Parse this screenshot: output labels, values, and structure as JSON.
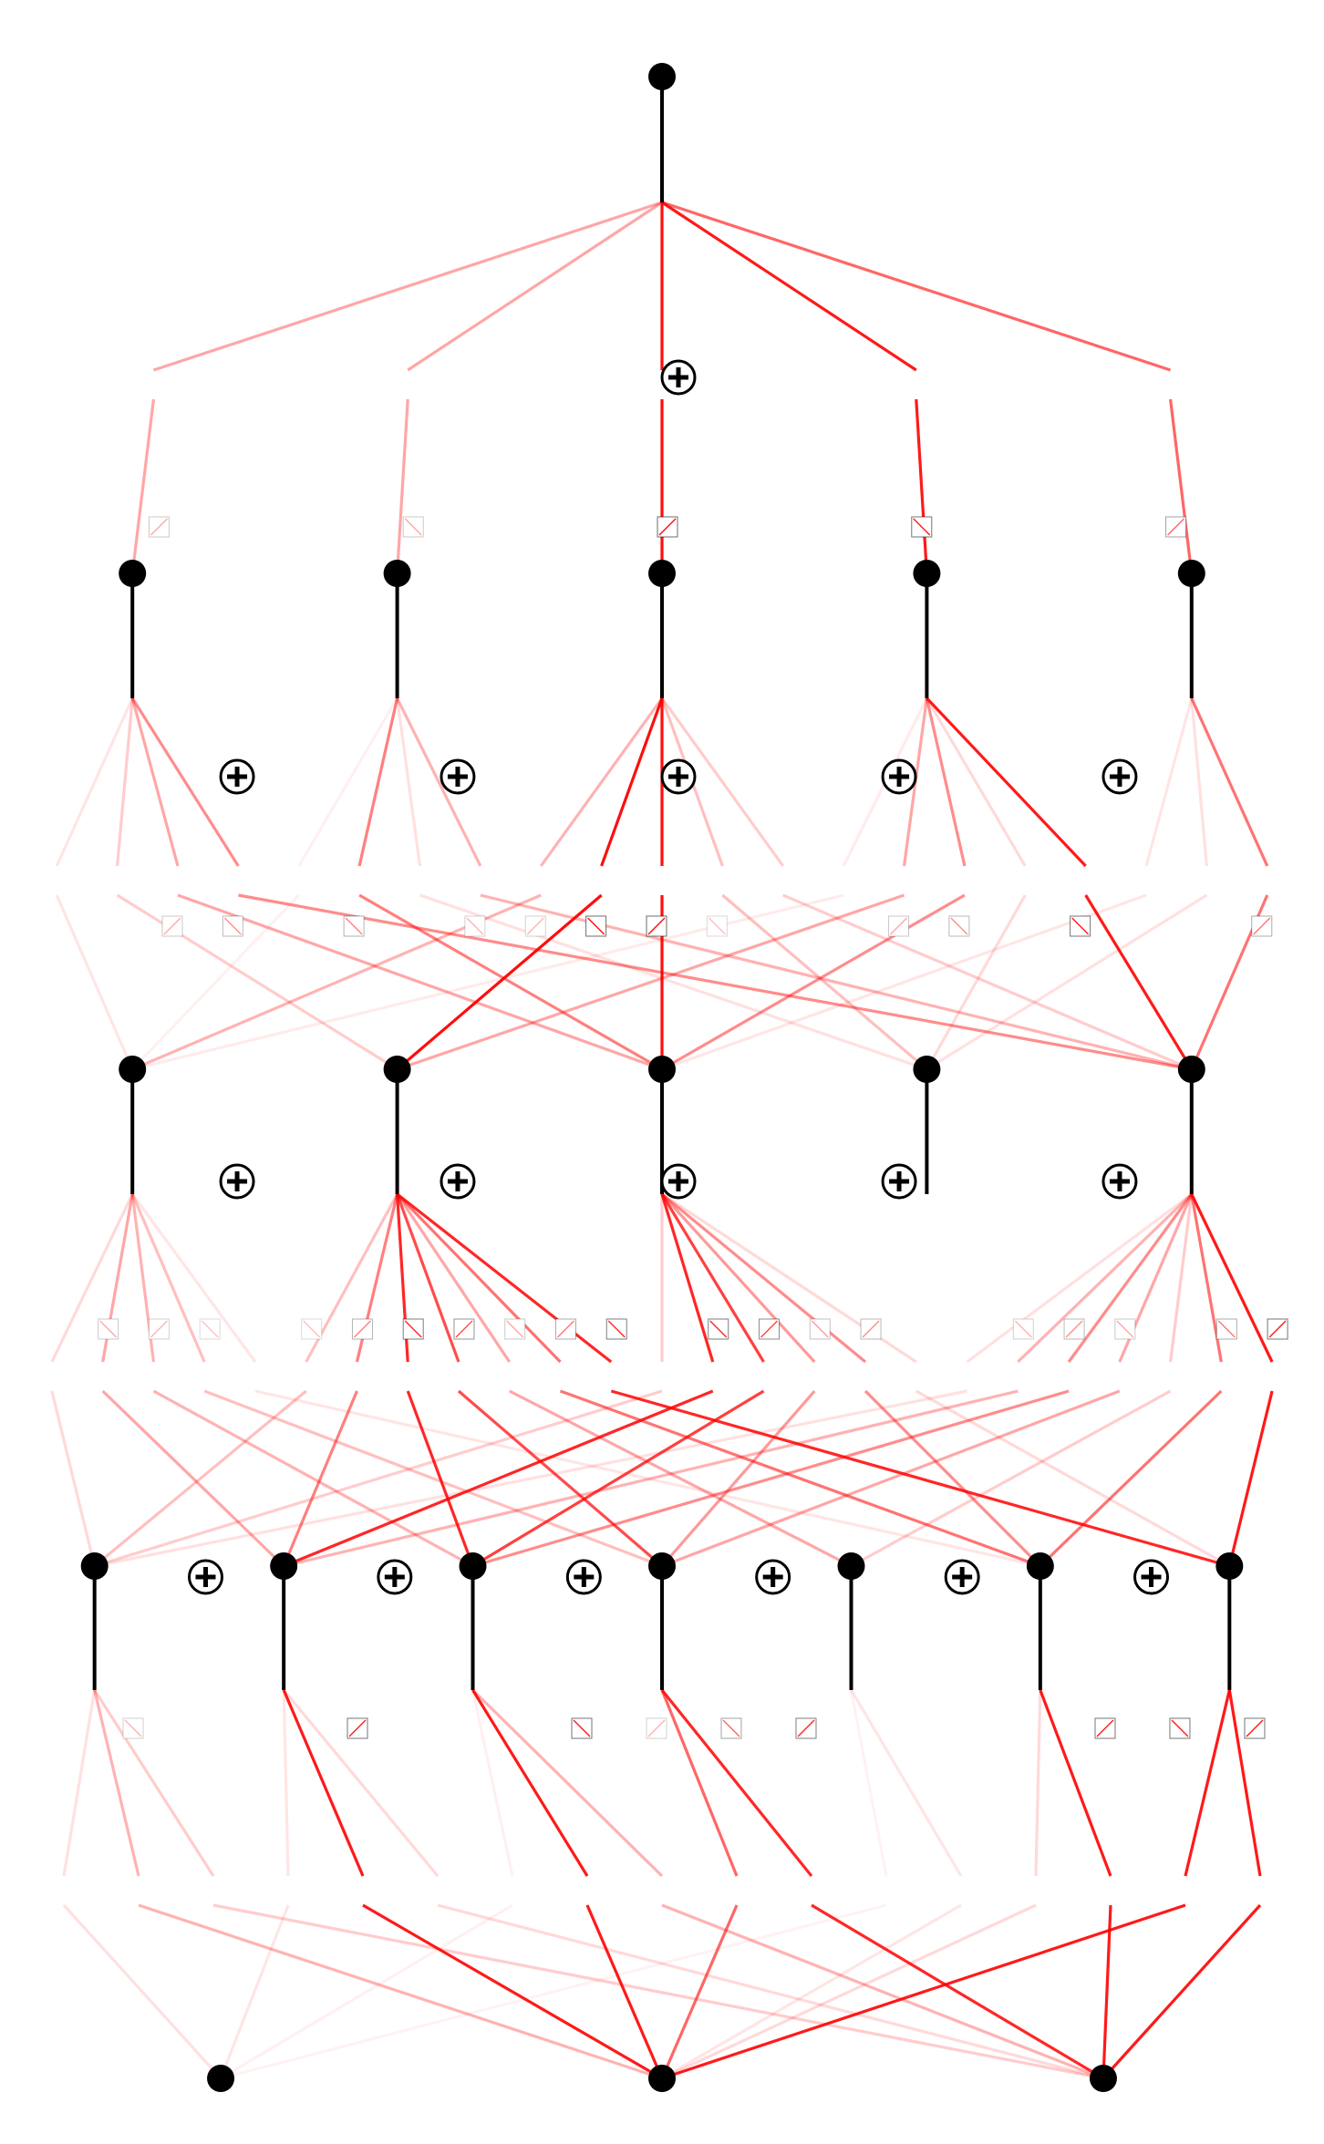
{
  "colors": {
    "node": "#000000",
    "edge_strong": "#ff0000",
    "stem": "#000000"
  },
  "layers": [
    {
      "name": "layer-0",
      "nodes": [
        0.5
      ]
    },
    {
      "name": "layer-1",
      "nodes": [
        0.1,
        0.3,
        0.5,
        0.7,
        0.9
      ]
    },
    {
      "name": "layer-2",
      "nodes": [
        0.1,
        0.3,
        0.5,
        0.7,
        0.9
      ]
    },
    {
      "name": "layer-3",
      "nodes": [
        0.0714,
        0.2143,
        0.3571,
        0.5,
        0.6429,
        0.7857,
        0.9286
      ]
    },
    {
      "name": "layer-4",
      "nodes": [
        0.1667,
        0.5,
        0.8333
      ]
    }
  ],
  "sum_symbols": [
    {
      "between": [
        0,
        1
      ],
      "positions": [
        0.5
      ]
    },
    {
      "between": [
        1,
        2
      ],
      "positions": [
        0.1667,
        0.3333,
        0.5,
        0.6667,
        0.8333
      ]
    },
    {
      "between": [
        2,
        3
      ],
      "positions": [
        0.1667,
        0.3333,
        0.5,
        0.6667,
        0.8333
      ]
    },
    {
      "between": [
        3,
        4
      ],
      "positions": [
        0.1429,
        0.2857,
        0.4286,
        0.5714,
        0.7143,
        0.8571
      ]
    }
  ],
  "edge_groups": [
    {
      "from_layer": 0,
      "to_layer": 1,
      "edges": [
        {
          "src": 0,
          "dst": 0,
          "w": 0.35
        },
        {
          "src": 0,
          "dst": 1,
          "w": 0.35
        },
        {
          "src": 0,
          "dst": 2,
          "w": 0.95
        },
        {
          "src": 0,
          "dst": 3,
          "w": 0.9
        },
        {
          "src": 0,
          "dst": 4,
          "w": 0.6
        }
      ]
    },
    {
      "from_layer": 1,
      "to_layer": 2,
      "edges": [
        {
          "src": 0,
          "dst": 0,
          "w": 0.1
        },
        {
          "src": 0,
          "dst": 1,
          "w": 0.2
        },
        {
          "src": 0,
          "dst": 2,
          "w": 0.35
        },
        {
          "src": 0,
          "dst": 4,
          "w": 0.45
        },
        {
          "src": 1,
          "dst": 0,
          "w": 0.06
        },
        {
          "src": 1,
          "dst": 2,
          "w": 0.5
        },
        {
          "src": 1,
          "dst": 3,
          "w": 0.12
        },
        {
          "src": 1,
          "dst": 4,
          "w": 0.3
        },
        {
          "src": 2,
          "dst": 0,
          "w": 0.3
        },
        {
          "src": 2,
          "dst": 1,
          "w": 0.95
        },
        {
          "src": 2,
          "dst": 2,
          "w": 0.95
        },
        {
          "src": 2,
          "dst": 3,
          "w": 0.25
        },
        {
          "src": 2,
          "dst": 4,
          "w": 0.2
        },
        {
          "src": 3,
          "dst": 0,
          "w": 0.08
        },
        {
          "src": 3,
          "dst": 1,
          "w": 0.35
        },
        {
          "src": 3,
          "dst": 2,
          "w": 0.45
        },
        {
          "src": 3,
          "dst": 3,
          "w": 0.15
        },
        {
          "src": 3,
          "dst": 4,
          "w": 0.9
        },
        {
          "src": 4,
          "dst": 2,
          "w": 0.1
        },
        {
          "src": 4,
          "dst": 3,
          "w": 0.12
        },
        {
          "src": 4,
          "dst": 4,
          "w": 0.55
        }
      ]
    },
    {
      "from_layer": 2,
      "to_layer": 3,
      "edges": [
        {
          "src": 0,
          "dst": 0,
          "w": 0.15
        },
        {
          "src": 0,
          "dst": 1,
          "w": 0.35
        },
        {
          "src": 0,
          "dst": 2,
          "w": 0.3
        },
        {
          "src": 0,
          "dst": 3,
          "w": 0.25
        },
        {
          "src": 0,
          "dst": 5,
          "w": 0.1
        },
        {
          "src": 1,
          "dst": 0,
          "w": 0.25
        },
        {
          "src": 1,
          "dst": 1,
          "w": 0.5
        },
        {
          "src": 1,
          "dst": 2,
          "w": 0.85
        },
        {
          "src": 1,
          "dst": 3,
          "w": 0.7
        },
        {
          "src": 1,
          "dst": 4,
          "w": 0.35
        },
        {
          "src": 1,
          "dst": 5,
          "w": 0.55
        },
        {
          "src": 1,
          "dst": 6,
          "w": 0.85
        },
        {
          "src": 2,
          "dst": 0,
          "w": 0.2
        },
        {
          "src": 2,
          "dst": 1,
          "w": 0.85
        },
        {
          "src": 2,
          "dst": 2,
          "w": 0.75
        },
        {
          "src": 2,
          "dst": 3,
          "w": 0.4
        },
        {
          "src": 2,
          "dst": 5,
          "w": 0.45
        },
        {
          "src": 2,
          "dst": 6,
          "w": 0.15
        },
        {
          "src": 4,
          "dst": 0,
          "w": 0.12
        },
        {
          "src": 4,
          "dst": 1,
          "w": 0.3
        },
        {
          "src": 4,
          "dst": 2,
          "w": 0.45
        },
        {
          "src": 4,
          "dst": 3,
          "w": 0.35
        },
        {
          "src": 4,
          "dst": 4,
          "w": 0.2
        },
        {
          "src": 4,
          "dst": 5,
          "w": 0.55
        },
        {
          "src": 4,
          "dst": 6,
          "w": 0.9
        }
      ]
    },
    {
      "from_layer": 3,
      "to_layer": 4,
      "edges": [
        {
          "src": 0,
          "dst": 0,
          "w": 0.12
        },
        {
          "src": 0,
          "dst": 1,
          "w": 0.3
        },
        {
          "src": 0,
          "dst": 2,
          "w": 0.2
        },
        {
          "src": 1,
          "dst": 0,
          "w": 0.1
        },
        {
          "src": 1,
          "dst": 1,
          "w": 0.9
        },
        {
          "src": 1,
          "dst": 2,
          "w": 0.15
        },
        {
          "src": 2,
          "dst": 0,
          "w": 0.06
        },
        {
          "src": 2,
          "dst": 1,
          "w": 0.9
        },
        {
          "src": 2,
          "dst": 2,
          "w": 0.3
        },
        {
          "src": 3,
          "dst": 1,
          "w": 0.6
        },
        {
          "src": 3,
          "dst": 2,
          "w": 0.85
        },
        {
          "src": 4,
          "dst": 0,
          "w": 0.05
        },
        {
          "src": 4,
          "dst": 1,
          "w": 0.1
        },
        {
          "src": 5,
          "dst": 1,
          "w": 0.15
        },
        {
          "src": 5,
          "dst": 2,
          "w": 0.9
        },
        {
          "src": 6,
          "dst": 1,
          "w": 0.9
        },
        {
          "src": 6,
          "dst": 2,
          "w": 0.9
        }
      ]
    }
  ]
}
